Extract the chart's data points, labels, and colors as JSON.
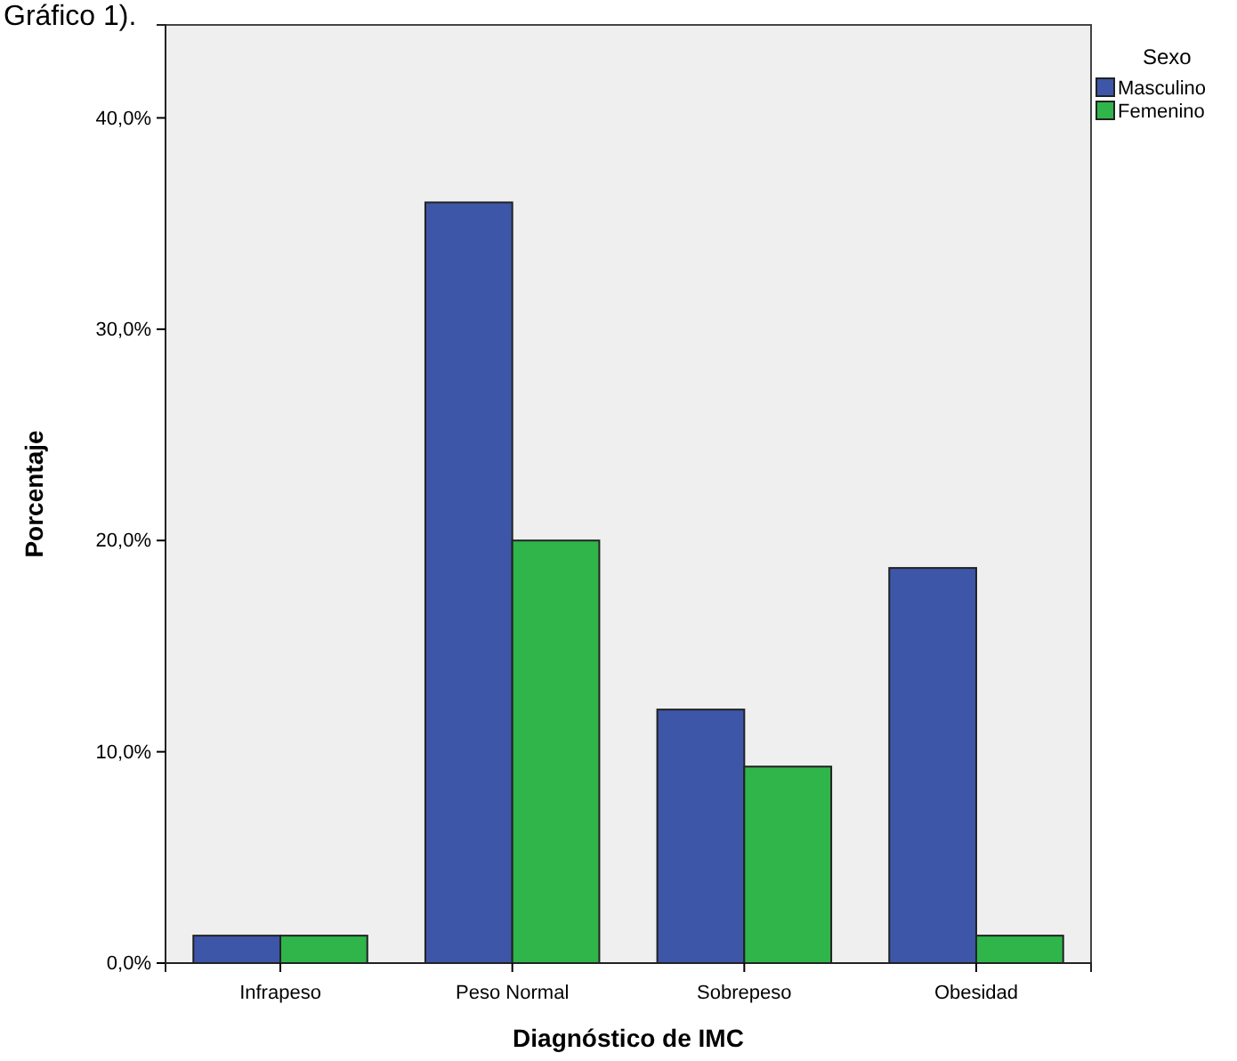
{
  "chart_data": {
    "type": "bar",
    "xlabel": "Diagnóstico de IMC",
    "ylabel": "Porcentaje",
    "legend_title": "Sexo",
    "legend": "top right",
    "annotations": [
      "Gráfico 1)."
    ],
    "categories": [
      "Infrapeso",
      "Peso Normal",
      "Sobrepeso",
      "Obesidad"
    ],
    "series": [
      {
        "name": "Masculino",
        "color": "#3d56a8",
        "values": [
          1.3,
          36.0,
          12.0,
          18.7
        ]
      },
      {
        "name": "Femenino",
        "color": "#2fb54a",
        "values": [
          1.3,
          20.0,
          9.3,
          1.3
        ]
      }
    ],
    "ylim": [
      0,
      44.4
    ],
    "yticks": [
      {
        "value": 0,
        "label": "0,0%"
      },
      {
        "value": 10,
        "label": "10,0%"
      },
      {
        "value": 20,
        "label": "20,0%"
      },
      {
        "value": 30,
        "label": "30,0%"
      },
      {
        "value": 40,
        "label": "40,0%"
      }
    ],
    "grid": false
  }
}
